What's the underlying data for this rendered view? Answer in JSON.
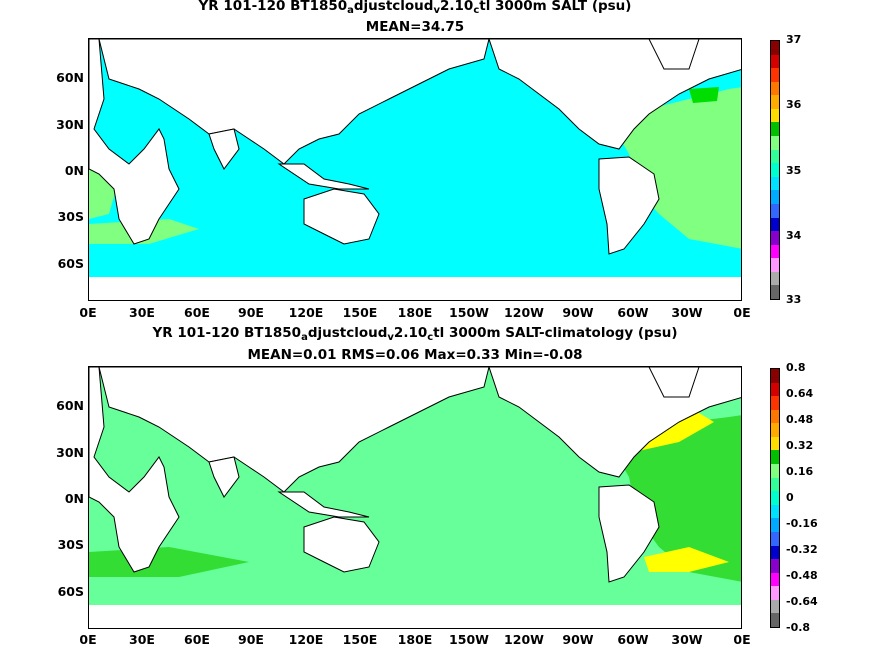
{
  "panel1": {
    "title_a": "YR 101-120 BT1850",
    "title_sub1": "a",
    "title_b": "djustcloud",
    "title_sub2": "v",
    "title_c": "2.10",
    "title_sub3": "c",
    "title_d": "tl 3000m SALT (psu)",
    "subtitle": "MEAN=34.75",
    "colorbar_labels": [
      "37",
      "36",
      "35",
      "34",
      "33"
    ]
  },
  "panel2": {
    "title_a": "YR 101-120 BT1850",
    "title_sub1": "a",
    "title_b": "djustcloud",
    "title_sub2": "v",
    "title_c": "2.10",
    "title_sub3": "c",
    "title_d": "tl 3000m SALT-climatology (psu)",
    "subtitle": "MEAN=0.01   RMS=0.06   Max=0.33   Min=-0.08",
    "colorbar_labels": [
      "0.8",
      "0.64",
      "0.48",
      "0.32",
      "0.16",
      "0",
      "-0.16",
      "-0.32",
      "-0.48",
      "-0.64",
      "-0.8"
    ]
  },
  "axes": {
    "lat_labels": [
      "60N",
      "30N",
      "0N",
      "30S",
      "60S"
    ],
    "lon_labels": [
      "0E",
      "30E",
      "60E",
      "90E",
      "120E",
      "150E",
      "180E",
      "150W",
      "120W",
      "90W",
      "60W",
      "30W",
      "0E"
    ]
  },
  "colors": {
    "land": "#ffffff",
    "ocean_panel1": "#00ffff",
    "ocean_panel1_high": "#80ff80",
    "ocean_panel2": "#66ff99",
    "ocean_panel2_mid": "#33dd33",
    "ocean_panel2_high": "#ffff00",
    "colorbar_panel1": [
      "#880000",
      "#d40000",
      "#ff3300",
      "#ff7700",
      "#ffaa00",
      "#ffdd00",
      "#00c000",
      "#80ff80",
      "#33ff99",
      "#00ffcc",
      "#00e0ff",
      "#00aaff",
      "#3366ff",
      "#0000cc",
      "#8800cc",
      "#ff00ff",
      "#ff99ff",
      "#aaaaaa",
      "#666666"
    ],
    "colorbar_panel2": [
      "#880000",
      "#d40000",
      "#ff3300",
      "#ff7700",
      "#ffaa00",
      "#ffdd00",
      "#00c000",
      "#80ff80",
      "#33ff99",
      "#00ffcc",
      "#00e0ff",
      "#00aaff",
      "#3366ff",
      "#0000cc",
      "#8800cc",
      "#ff00ff",
      "#ff99ff",
      "#aaaaaa",
      "#666666"
    ]
  }
}
